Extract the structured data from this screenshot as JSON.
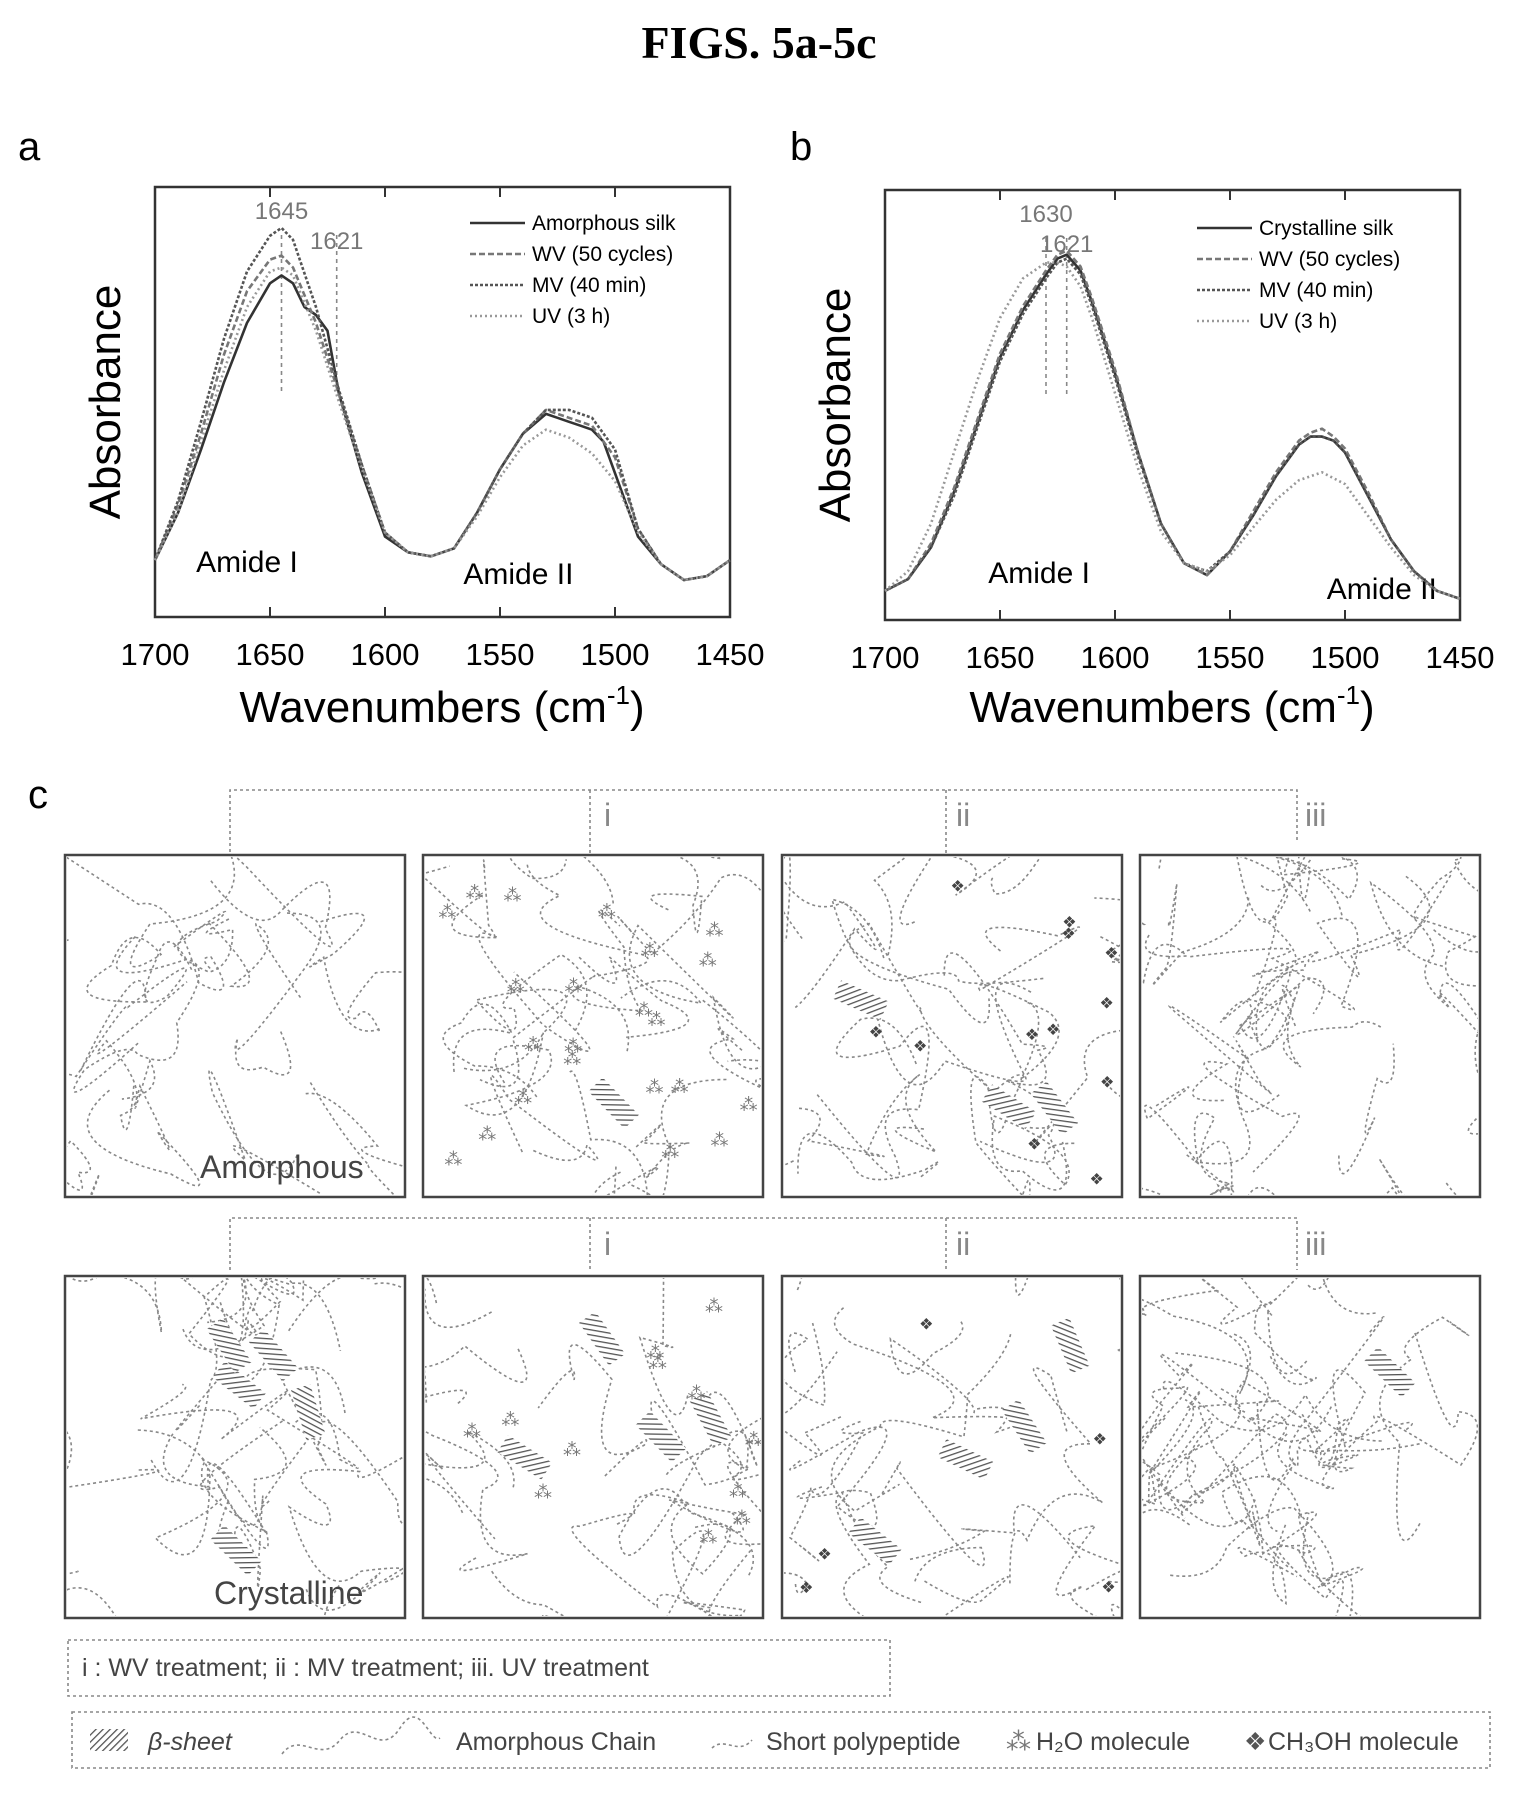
{
  "figure_title": "FIGS. 5a-5c",
  "chart_data": [
    {
      "type": "line",
      "panel": "a",
      "xlabel": "Wavenumbers (cm",
      "xlabel_sup": "-1",
      "xlabel_close": ")",
      "ylabel": "Absorbance",
      "xlim": [
        1700,
        1450
      ],
      "ylim": [
        0,
        1
      ],
      "xticks": [
        "1700",
        "1650",
        "1600",
        "1550",
        "1500",
        "1450"
      ],
      "annotations": [
        {
          "text": "1645",
          "x": 1645
        },
        {
          "text": "1621",
          "x": 1621
        }
      ],
      "band_labels": [
        {
          "text": "Amide I",
          "x": 1660,
          "y": 0.07
        },
        {
          "text": "Amide II",
          "x": 1542,
          "y": 0.04
        }
      ],
      "series": [
        {
          "name": "Amorphous silk",
          "color": "#333333",
          "dash": "",
          "x": [
            1700,
            1690,
            1680,
            1670,
            1660,
            1650,
            1645,
            1640,
            1635,
            1630,
            1625,
            1620,
            1615,
            1610,
            1600,
            1590,
            1580,
            1570,
            1560,
            1550,
            1540,
            1530,
            1525,
            1520,
            1515,
            1510,
            1505,
            1500,
            1490,
            1480,
            1470,
            1460,
            1450
          ],
          "y": [
            0.1,
            0.22,
            0.38,
            0.55,
            0.7,
            0.8,
            0.82,
            0.8,
            0.74,
            0.72,
            0.68,
            0.52,
            0.42,
            0.32,
            0.16,
            0.12,
            0.11,
            0.13,
            0.22,
            0.33,
            0.42,
            0.47,
            0.46,
            0.45,
            0.44,
            0.43,
            0.4,
            0.32,
            0.16,
            0.09,
            0.05,
            0.06,
            0.1
          ]
        },
        {
          "name": "WV (50 cycles)",
          "color": "#777777",
          "dash": "6 3",
          "x": [
            1700,
            1690,
            1680,
            1670,
            1660,
            1650,
            1645,
            1640,
            1630,
            1620,
            1610,
            1600,
            1590,
            1580,
            1570,
            1560,
            1550,
            1540,
            1530,
            1520,
            1510,
            1500,
            1490,
            1480,
            1470,
            1460,
            1450
          ],
          "y": [
            0.1,
            0.24,
            0.42,
            0.62,
            0.78,
            0.86,
            0.87,
            0.84,
            0.7,
            0.52,
            0.34,
            0.17,
            0.12,
            0.11,
            0.13,
            0.22,
            0.33,
            0.42,
            0.48,
            0.46,
            0.44,
            0.36,
            0.18,
            0.09,
            0.05,
            0.06,
            0.1
          ]
        },
        {
          "name": "MV (40 min)",
          "color": "#555555",
          "dash": "3 2",
          "x": [
            1700,
            1690,
            1680,
            1670,
            1660,
            1650,
            1645,
            1640,
            1630,
            1620,
            1610,
            1600,
            1590,
            1580,
            1570,
            1560,
            1550,
            1540,
            1530,
            1520,
            1515,
            1510,
            1500,
            1490,
            1480,
            1470,
            1460,
            1450
          ],
          "y": [
            0.1,
            0.25,
            0.45,
            0.66,
            0.83,
            0.92,
            0.94,
            0.91,
            0.74,
            0.53,
            0.34,
            0.17,
            0.12,
            0.11,
            0.13,
            0.22,
            0.33,
            0.42,
            0.48,
            0.48,
            0.47,
            0.46,
            0.38,
            0.18,
            0.09,
            0.05,
            0.06,
            0.1
          ]
        },
        {
          "name": "UV (3 h)",
          "color": "#999999",
          "dash": "2 3",
          "x": [
            1700,
            1690,
            1680,
            1670,
            1660,
            1650,
            1645,
            1640,
            1630,
            1620,
            1610,
            1600,
            1590,
            1580,
            1570,
            1560,
            1550,
            1540,
            1530,
            1520,
            1510,
            1500,
            1490,
            1480,
            1470,
            1460,
            1450
          ],
          "y": [
            0.1,
            0.22,
            0.4,
            0.58,
            0.74,
            0.83,
            0.84,
            0.82,
            0.68,
            0.5,
            0.33,
            0.17,
            0.12,
            0.11,
            0.13,
            0.21,
            0.31,
            0.39,
            0.43,
            0.41,
            0.37,
            0.3,
            0.17,
            0.09,
            0.05,
            0.06,
            0.1
          ]
        }
      ]
    },
    {
      "type": "line",
      "panel": "b",
      "xlabel": "Wavenumbers (cm",
      "xlabel_sup": "-1",
      "xlabel_close": ")",
      "ylabel": "Absorbance",
      "xlim": [
        1700,
        1450
      ],
      "ylim": [
        0,
        1
      ],
      "xticks": [
        "1700",
        "1650",
        "1600",
        "1550",
        "1500",
        "1450"
      ],
      "annotations": [
        {
          "text": "1630",
          "x": 1630
        },
        {
          "text": "1621",
          "x": 1621
        }
      ],
      "band_labels": [
        {
          "text": "Amide I",
          "x": 1633,
          "y": 0.05
        },
        {
          "text": "Amide II",
          "x": 1484,
          "y": 0.01
        }
      ],
      "series": [
        {
          "name": "Crystalline silk",
          "color": "#333333",
          "dash": "",
          "x": [
            1700,
            1690,
            1680,
            1670,
            1660,
            1650,
            1640,
            1630,
            1625,
            1621,
            1615,
            1610,
            1600,
            1590,
            1580,
            1570,
            1560,
            1550,
            1540,
            1530,
            1520,
            1515,
            1510,
            1505,
            1500,
            1490,
            1480,
            1470,
            1460,
            1450
          ],
          "y": [
            0.03,
            0.06,
            0.14,
            0.28,
            0.45,
            0.62,
            0.74,
            0.83,
            0.87,
            0.88,
            0.84,
            0.76,
            0.58,
            0.38,
            0.2,
            0.1,
            0.07,
            0.13,
            0.22,
            0.32,
            0.4,
            0.42,
            0.42,
            0.41,
            0.38,
            0.27,
            0.16,
            0.08,
            0.03,
            0.01
          ]
        },
        {
          "name": "WV (50 cycles)",
          "color": "#777777",
          "dash": "6 3",
          "x": [
            1700,
            1690,
            1680,
            1670,
            1660,
            1650,
            1640,
            1630,
            1625,
            1621,
            1615,
            1610,
            1600,
            1590,
            1580,
            1570,
            1560,
            1550,
            1540,
            1530,
            1520,
            1515,
            1510,
            1505,
            1500,
            1490,
            1480,
            1470,
            1460,
            1450
          ],
          "y": [
            0.03,
            0.06,
            0.15,
            0.29,
            0.46,
            0.63,
            0.75,
            0.84,
            0.88,
            0.89,
            0.85,
            0.77,
            0.59,
            0.38,
            0.2,
            0.1,
            0.07,
            0.13,
            0.23,
            0.33,
            0.41,
            0.43,
            0.44,
            0.42,
            0.39,
            0.28,
            0.16,
            0.08,
            0.03,
            0.01
          ]
        },
        {
          "name": "MV (40 min)",
          "color": "#555555",
          "dash": "3 2",
          "x": [
            1700,
            1690,
            1680,
            1670,
            1660,
            1650,
            1640,
            1630,
            1625,
            1621,
            1615,
            1610,
            1600,
            1590,
            1580,
            1570,
            1560,
            1550,
            1540,
            1530,
            1520,
            1515,
            1510,
            1505,
            1500,
            1490,
            1480,
            1470,
            1460,
            1450
          ],
          "y": [
            0.03,
            0.06,
            0.14,
            0.27,
            0.44,
            0.61,
            0.73,
            0.82,
            0.86,
            0.87,
            0.83,
            0.75,
            0.57,
            0.37,
            0.2,
            0.1,
            0.08,
            0.13,
            0.22,
            0.32,
            0.4,
            0.42,
            0.42,
            0.41,
            0.38,
            0.27,
            0.16,
            0.08,
            0.03,
            0.01
          ]
        },
        {
          "name": "UV (3 h)",
          "color": "#999999",
          "dash": "2 3",
          "x": [
            1700,
            1690,
            1680,
            1670,
            1660,
            1650,
            1640,
            1630,
            1625,
            1621,
            1615,
            1610,
            1600,
            1590,
            1580,
            1570,
            1560,
            1550,
            1540,
            1530,
            1520,
            1510,
            1500,
            1490,
            1480,
            1470,
            1460,
            1450
          ],
          "y": [
            0.03,
            0.08,
            0.2,
            0.38,
            0.56,
            0.72,
            0.82,
            0.86,
            0.86,
            0.85,
            0.8,
            0.72,
            0.53,
            0.34,
            0.18,
            0.1,
            0.08,
            0.12,
            0.19,
            0.26,
            0.31,
            0.33,
            0.3,
            0.22,
            0.14,
            0.07,
            0.03,
            0.01
          ]
        }
      ]
    }
  ],
  "panel_c": {
    "letter": "c",
    "bracket_labels": [
      "i",
      "ii",
      "iii"
    ],
    "row_labels": [
      "Amorphous",
      "Crystalline"
    ],
    "treatment_key": "i : WV treatment;  ii : MV treatment;  iii. UV treatment",
    "legend": {
      "beta_sheet": "β-sheet",
      "amorphous_chain": "Amorphous Chain",
      "short_polypeptide": "Short polypeptide",
      "h2o": "H₂O molecule",
      "ch3oh": "CH₃OH molecule"
    }
  }
}
